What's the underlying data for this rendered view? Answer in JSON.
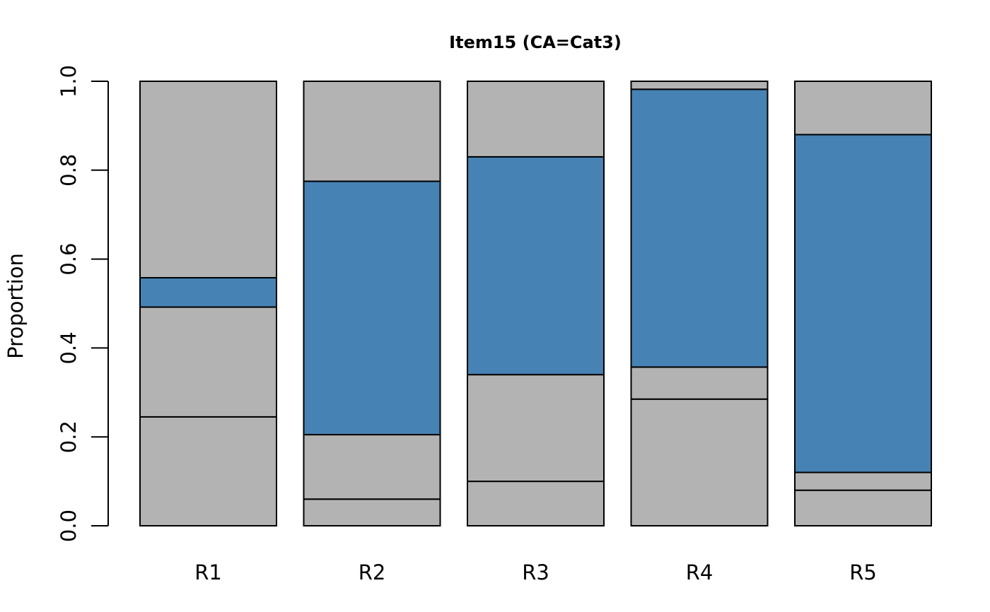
{
  "chart_data": {
    "type": "bar",
    "stacked": true,
    "title": "Item15 (CA=Cat3)",
    "xlabel": "",
    "ylabel": "Proportion",
    "ylim": [
      0,
      1
    ],
    "yticks": [
      "0.0",
      "0.2",
      "0.4",
      "0.6",
      "0.8",
      "1.0"
    ],
    "categories": [
      "R1",
      "R2",
      "R3",
      "R4",
      "R5"
    ],
    "key_category_index": 2,
    "colors": {
      "key": "#4682b4",
      "other": "#b3b3b3",
      "outline": "#000000"
    },
    "series": [
      {
        "values": [
          0.245,
          0.06,
          0.1,
          0.285,
          0.08
        ]
      },
      {
        "values": [
          0.247,
          0.145,
          0.24,
          0.072,
          0.04
        ]
      },
      {
        "values": [
          0.066,
          0.57,
          0.49,
          0.625,
          0.76
        ]
      },
      {
        "values": [
          0.442,
          0.225,
          0.17,
          0.018,
          0.12
        ]
      }
    ],
    "grid": false,
    "legend": "none"
  }
}
